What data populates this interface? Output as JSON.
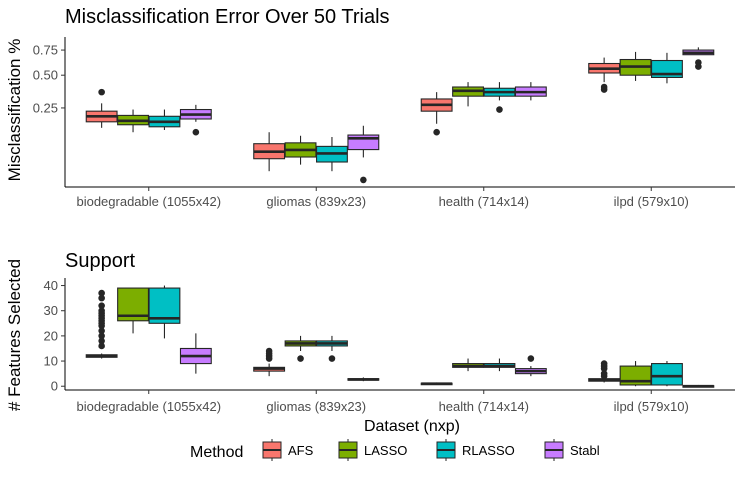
{
  "chart_data": [
    {
      "type": "boxplot",
      "title": "Misclassification Error Over 50 Trials",
      "ylabel": "Misclassification %",
      "xlabel": "",
      "y_scale": "sqrt",
      "ylim": [
        0.0,
        0.9
      ],
      "yticks": [
        0.25,
        0.5,
        0.75
      ],
      "ytick_labels": [
        "0.25",
        "0.50",
        "0.75"
      ],
      "categories": [
        "biodegradable (1055x42)",
        "gliomas (839x23)",
        "health (714x14)",
        "ilpd (579x10)"
      ],
      "series": [
        {
          "name": "AFS",
          "boxes": [
            {
              "min": 0.14,
              "q1": 0.17,
              "median": 0.2,
              "q3": 0.23,
              "max": 0.28,
              "outliers": [
                0.36
              ]
            },
            {
              "min": 0.01,
              "q1": 0.032,
              "median": 0.05,
              "q3": 0.075,
              "max": 0.12,
              "outliers": []
            },
            {
              "min": 0.16,
              "q1": 0.23,
              "median": 0.27,
              "q3": 0.31,
              "max": 0.36,
              "outliers": [
                0.12
              ]
            },
            {
              "min": 0.44,
              "q1": 0.52,
              "median": 0.56,
              "q3": 0.61,
              "max": 0.67,
              "outliers": [
                0.38,
                0.4
              ]
            }
          ]
        },
        {
          "name": "LASSO",
          "boxes": [
            {
              "min": 0.12,
              "q1": 0.155,
              "median": 0.175,
              "q3": 0.205,
              "max": 0.24,
              "outliers": []
            },
            {
              "min": 0.02,
              "q1": 0.036,
              "median": 0.055,
              "q3": 0.078,
              "max": 0.105,
              "outliers": []
            },
            {
              "min": 0.26,
              "q1": 0.33,
              "median": 0.37,
              "q3": 0.4,
              "max": 0.44,
              "outliers": []
            },
            {
              "min": 0.45,
              "q1": 0.5,
              "median": 0.58,
              "q3": 0.65,
              "max": 0.73,
              "outliers": []
            }
          ]
        },
        {
          "name": "RLASSO",
          "boxes": [
            {
              "min": 0.13,
              "q1": 0.145,
              "median": 0.17,
              "q3": 0.2,
              "max": 0.24,
              "outliers": []
            },
            {
              "min": 0.01,
              "q1": 0.025,
              "median": 0.045,
              "q3": 0.066,
              "max": 0.1,
              "outliers": []
            },
            {
              "min": 0.3,
              "q1": 0.33,
              "median": 0.36,
              "q3": 0.39,
              "max": 0.44,
              "outliers": [
                0.24
              ]
            },
            {
              "min": 0.43,
              "q1": 0.48,
              "median": 0.51,
              "q3": 0.64,
              "max": 0.72,
              "outliers": []
            }
          ]
        },
        {
          "name": "Stabl",
          "boxes": [
            {
              "min": 0.17,
              "q1": 0.185,
              "median": 0.21,
              "q3": 0.24,
              "max": 0.27,
              "outliers": [
                0.12
              ]
            },
            {
              "min": 0.035,
              "q1": 0.056,
              "median": 0.095,
              "q3": 0.108,
              "max": 0.15,
              "outliers": [
                0.002
              ]
            },
            {
              "min": 0.3,
              "q1": 0.33,
              "median": 0.36,
              "q3": 0.4,
              "max": 0.44,
              "outliers": []
            },
            {
              "min": 0.7,
              "q1": 0.7,
              "median": 0.72,
              "q3": 0.75,
              "max": 0.78,
              "outliers": [
                0.58,
                0.62
              ]
            }
          ]
        }
      ]
    },
    {
      "type": "boxplot",
      "title": "Support",
      "ylabel": "# Features Selected",
      "xlabel": "Dataset (nxp)",
      "ylim": [
        -1.5,
        43
      ],
      "yticks": [
        0,
        10,
        20,
        30,
        40
      ],
      "ytick_labels": [
        "0",
        "10",
        "20",
        "30",
        "40"
      ],
      "categories": [
        "biodegradable (1055x42)",
        "gliomas (839x23)",
        "health (714x14)",
        "ilpd (579x10)"
      ],
      "series": [
        {
          "name": "AFS",
          "boxes": [
            {
              "min": 11,
              "q1": 11.5,
              "median": 12,
              "q3": 12.5,
              "max": 13,
              "outliers": [
                16,
                18,
                20,
                22,
                24,
                25,
                26,
                27,
                28,
                29,
                30,
                32,
                35,
                37
              ]
            },
            {
              "min": 4,
              "q1": 6,
              "median": 7,
              "q3": 7.5,
              "max": 9,
              "outliers": [
                11,
                12,
                13,
                14
              ]
            },
            {
              "min": 0.5,
              "q1": 0.8,
              "median": 1,
              "q3": 1.2,
              "max": 1.5,
              "outliers": []
            },
            {
              "min": 1.5,
              "q1": 2,
              "median": 2.5,
              "q3": 3,
              "max": 3.5,
              "outliers": [
                4,
                5,
                7,
                8,
                9
              ]
            }
          ]
        },
        {
          "name": "LASSO",
          "boxes": [
            {
              "min": 21,
              "q1": 26,
              "median": 28,
              "q3": 39,
              "max": 39,
              "outliers": []
            },
            {
              "min": 14,
              "q1": 16,
              "median": 17,
              "q3": 18,
              "max": 20,
              "outliers": [
                11
              ]
            },
            {
              "min": 6,
              "q1": 7.5,
              "median": 8,
              "q3": 9,
              "max": 11,
              "outliers": []
            },
            {
              "min": 0,
              "q1": 0.5,
              "median": 2,
              "q3": 8,
              "max": 10,
              "outliers": []
            }
          ]
        },
        {
          "name": "RLASSO",
          "boxes": [
            {
              "min": 19,
              "q1": 25,
              "median": 27,
              "q3": 39,
              "max": 40,
              "outliers": []
            },
            {
              "min": 14,
              "q1": 16,
              "median": 17,
              "q3": 18,
              "max": 20,
              "outliers": [
                11
              ]
            },
            {
              "min": 6,
              "q1": 7.5,
              "median": 8,
              "q3": 9,
              "max": 11,
              "outliers": []
            },
            {
              "min": 0,
              "q1": 0.5,
              "median": 4,
              "q3": 9,
              "max": 10,
              "outliers": []
            }
          ]
        },
        {
          "name": "Stabl",
          "boxes": [
            {
              "min": 5,
              "q1": 9,
              "median": 12,
              "q3": 15,
              "max": 21,
              "outliers": []
            },
            {
              "min": 2,
              "q1": 2.4,
              "median": 2.7,
              "q3": 3,
              "max": 3.5,
              "outliers": []
            },
            {
              "min": 4,
              "q1": 5,
              "median": 6,
              "q3": 7,
              "max": 8,
              "outliers": [
                11
              ]
            },
            {
              "min": -0.5,
              "q1": -0.2,
              "median": 0,
              "q3": 0.2,
              "max": 0.5,
              "outliers": []
            }
          ]
        }
      ]
    }
  ],
  "legend": {
    "title": "Method",
    "position": "bottom",
    "items": [
      {
        "label": "AFS",
        "color": "#f8766d"
      },
      {
        "label": "LASSO",
        "color": "#7cae00"
      },
      {
        "label": "RLASSO",
        "color": "#00bfc4"
      },
      {
        "label": "Stabl",
        "color": "#c77cff"
      }
    ]
  },
  "colors": {
    "AFS": "#f8766d",
    "LASSO": "#7cae00",
    "RLASSO": "#00bfc4",
    "Stabl": "#c77cff",
    "box_stroke": "#262626"
  }
}
